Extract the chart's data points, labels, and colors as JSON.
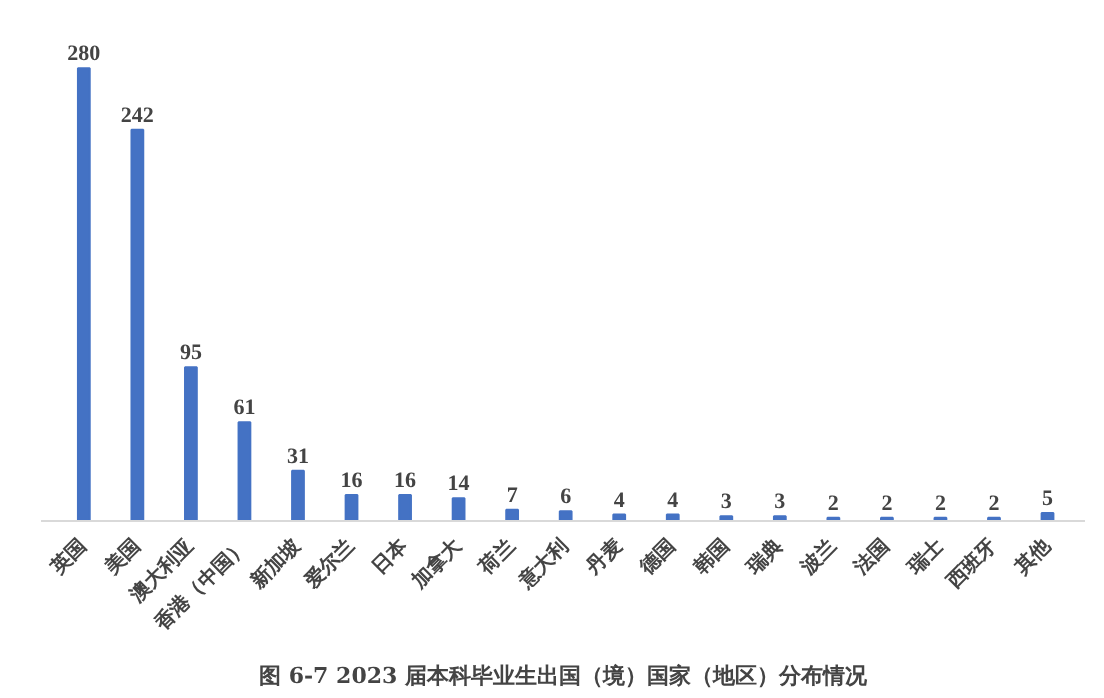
{
  "chart_data": {
    "type": "bar",
    "title": "图 6-7 2023 届本科毕业生出国（境）国家（地区）分布情况",
    "categories": [
      "英国",
      "美国",
      "澳大利亚",
      "香港（中国）",
      "新加坡",
      "爱尔兰",
      "日本",
      "加拿大",
      "荷兰",
      "意大利",
      "丹麦",
      "德国",
      "韩国",
      "瑞典",
      "波兰",
      "法国",
      "瑞士",
      "西班牙",
      "其他"
    ],
    "values": [
      280,
      242,
      95,
      61,
      31,
      16,
      16,
      14,
      7,
      6,
      4,
      4,
      3,
      3,
      2,
      2,
      2,
      2,
      5
    ],
    "color": "#4472c4",
    "data_labels": true
  }
}
